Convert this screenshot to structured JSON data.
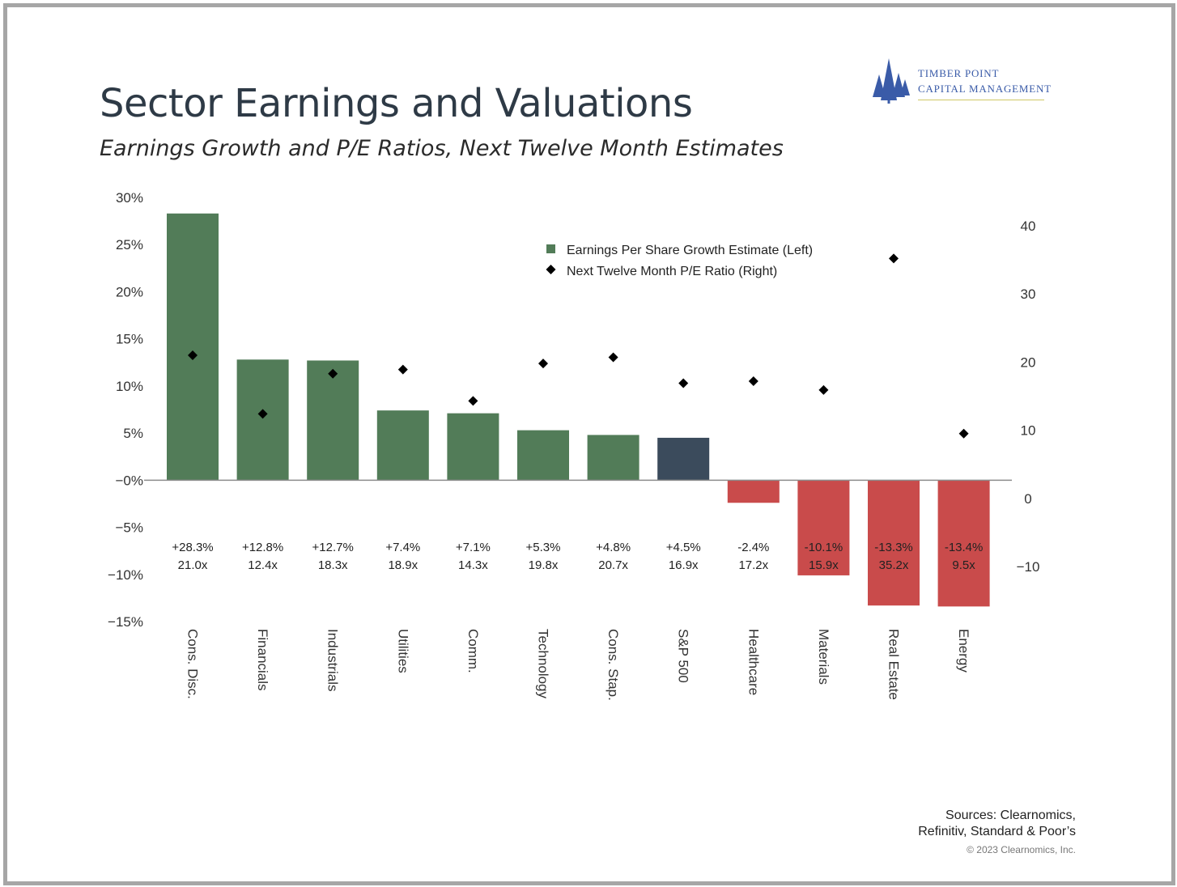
{
  "title": "Sector Earnings and Valuations",
  "subtitle": "Earnings Growth and P/E Ratios, Next Twelve Month Estimates",
  "logo": {
    "line1": "TIMBER POINT",
    "line2": "CAPITAL MANAGEMENT",
    "icon": "pine-trees-icon",
    "color": "#3a5ba8"
  },
  "sources": {
    "line1": "Sources: Clearnomics,",
    "line2": "Refinitiv, Standard & Poor’s",
    "copyright": "© 2023 Clearnomics, Inc."
  },
  "chart_data": {
    "type": "bar",
    "categories": [
      "Cons. Disc.",
      "Financials",
      "Industrials",
      "Utilities",
      "Comm.",
      "Technology",
      "Cons. Stap.",
      "S&P 500",
      "Healthcare",
      "Materials",
      "Real Estate",
      "Energy"
    ],
    "series": [
      {
        "name": "Earnings Per Share Growth Estimate (Left)",
        "type": "bar",
        "axis": "left",
        "values": [
          28.3,
          12.8,
          12.7,
          7.4,
          7.1,
          5.3,
          4.8,
          4.5,
          -2.4,
          -10.1,
          -13.3,
          -13.4
        ],
        "labels": [
          "+28.3%",
          "+12.8%",
          "+12.7%",
          "+7.4%",
          "+7.1%",
          "+5.3%",
          "+4.8%",
          "+4.5%",
          "-2.4%",
          "-10.1%",
          "-13.3%",
          "-13.4%"
        ]
      },
      {
        "name": "Next Twelve Month P/E Ratio (Right)",
        "type": "scatter",
        "axis": "right",
        "values": [
          21.0,
          12.4,
          18.3,
          18.9,
          14.3,
          19.8,
          20.7,
          16.9,
          17.2,
          15.9,
          35.2,
          9.5
        ],
        "labels": [
          "21.0x",
          "12.4x",
          "18.3x",
          "18.9x",
          "14.3x",
          "19.8x",
          "20.7x",
          "16.9x",
          "17.2x",
          "15.9x",
          "35.2x",
          "9.5x"
        ]
      }
    ],
    "left_axis": {
      "ylim": [
        -15,
        30
      ],
      "ticks": [
        30,
        25,
        20,
        15,
        10,
        5,
        0,
        -5,
        -10,
        -15
      ],
      "tick_labels": [
        "30%",
        "25%",
        "20%",
        "15%",
        "10%",
        "5%",
        "−0%",
        "−5%",
        "−10%",
        "−15%"
      ]
    },
    "right_axis": {
      "ylim": [
        -10,
        40
      ],
      "ticks": [
        40,
        30,
        20,
        10,
        0,
        -10
      ],
      "tick_labels": [
        "40",
        "30",
        "20",
        "10",
        "0",
        "−10"
      ]
    },
    "colors": {
      "positive": "#527c58",
      "benchmark": "#3b4b5c",
      "negative": "#c94b4b",
      "marker": "#000000"
    },
    "benchmark_category": "S&P 500",
    "legend_position": "top-right",
    "grid": false
  }
}
